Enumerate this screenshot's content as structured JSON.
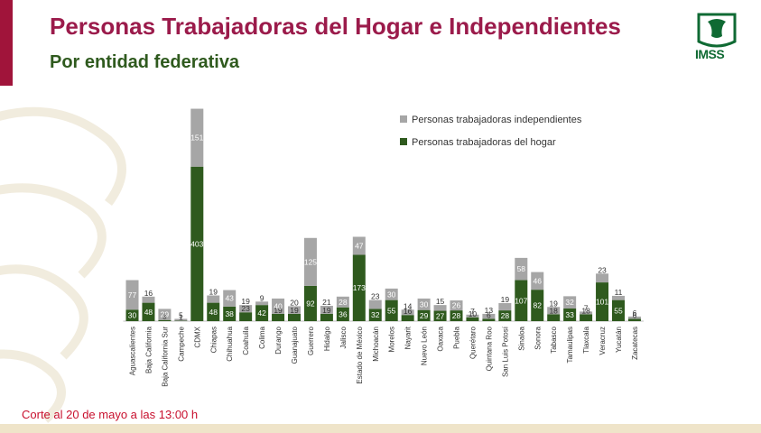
{
  "header": {
    "title": "Personas Trabajadoras del Hogar e Independientes",
    "subtitle": "Por entidad federativa"
  },
  "logo": {
    "text": "IMSS"
  },
  "footer": {
    "note": "Corte al 20 de mayo a las 13:00 h"
  },
  "colors": {
    "hogar": "#2f5a1e",
    "independientes": "#a6a6a6",
    "title": "#9b1b4b",
    "accent": "#a0143a"
  },
  "chart_data": {
    "type": "bar",
    "stacked": true,
    "categories": [
      "Aguascalientes",
      "Baja California",
      "Baja California Sur",
      "Campeche",
      "CDMX",
      "Chiapas",
      "Chihuahua",
      "Coahuila",
      "Colima",
      "Durango",
      "Guanajuato",
      "Guerrero",
      "Hidalgo",
      "Jalisco",
      "Estado de México",
      "Michoacán",
      "Morelos",
      "Nayarit",
      "Nuevo León",
      "Oaxaca",
      "Puebla",
      "Querétaro",
      "Quintana Roo",
      "San Luis Potosí",
      "Sinaloa",
      "Sonora",
      "Tabasco",
      "Tamaulipas",
      "Tlaxcala",
      "Veracruz",
      "Yucatán",
      "Zacatecas"
    ],
    "series": [
      {
        "name": "Personas trabajadoras del hogar",
        "values": [
          30,
          48,
          3,
          1,
          403,
          48,
          38,
          23,
          42,
          19,
          19,
          92,
          19,
          36,
          173,
          32,
          55,
          16,
          29,
          27,
          28,
          10,
          6,
          28,
          107,
          82,
          18,
          33,
          18,
          101,
          55,
          6
        ]
      },
      {
        "name": "Personas trabajadoras independientes",
        "values": [
          77,
          16,
          29,
          5,
          151,
          19,
          43,
          19,
          9,
          40,
          20,
          125,
          21,
          28,
          47,
          23,
          30,
          14,
          30,
          15,
          26,
          7,
          13,
          19,
          58,
          46,
          19,
          32,
          7,
          23,
          11,
          6
        ]
      }
    ],
    "legend_position": "top-right",
    "grid": false
  }
}
